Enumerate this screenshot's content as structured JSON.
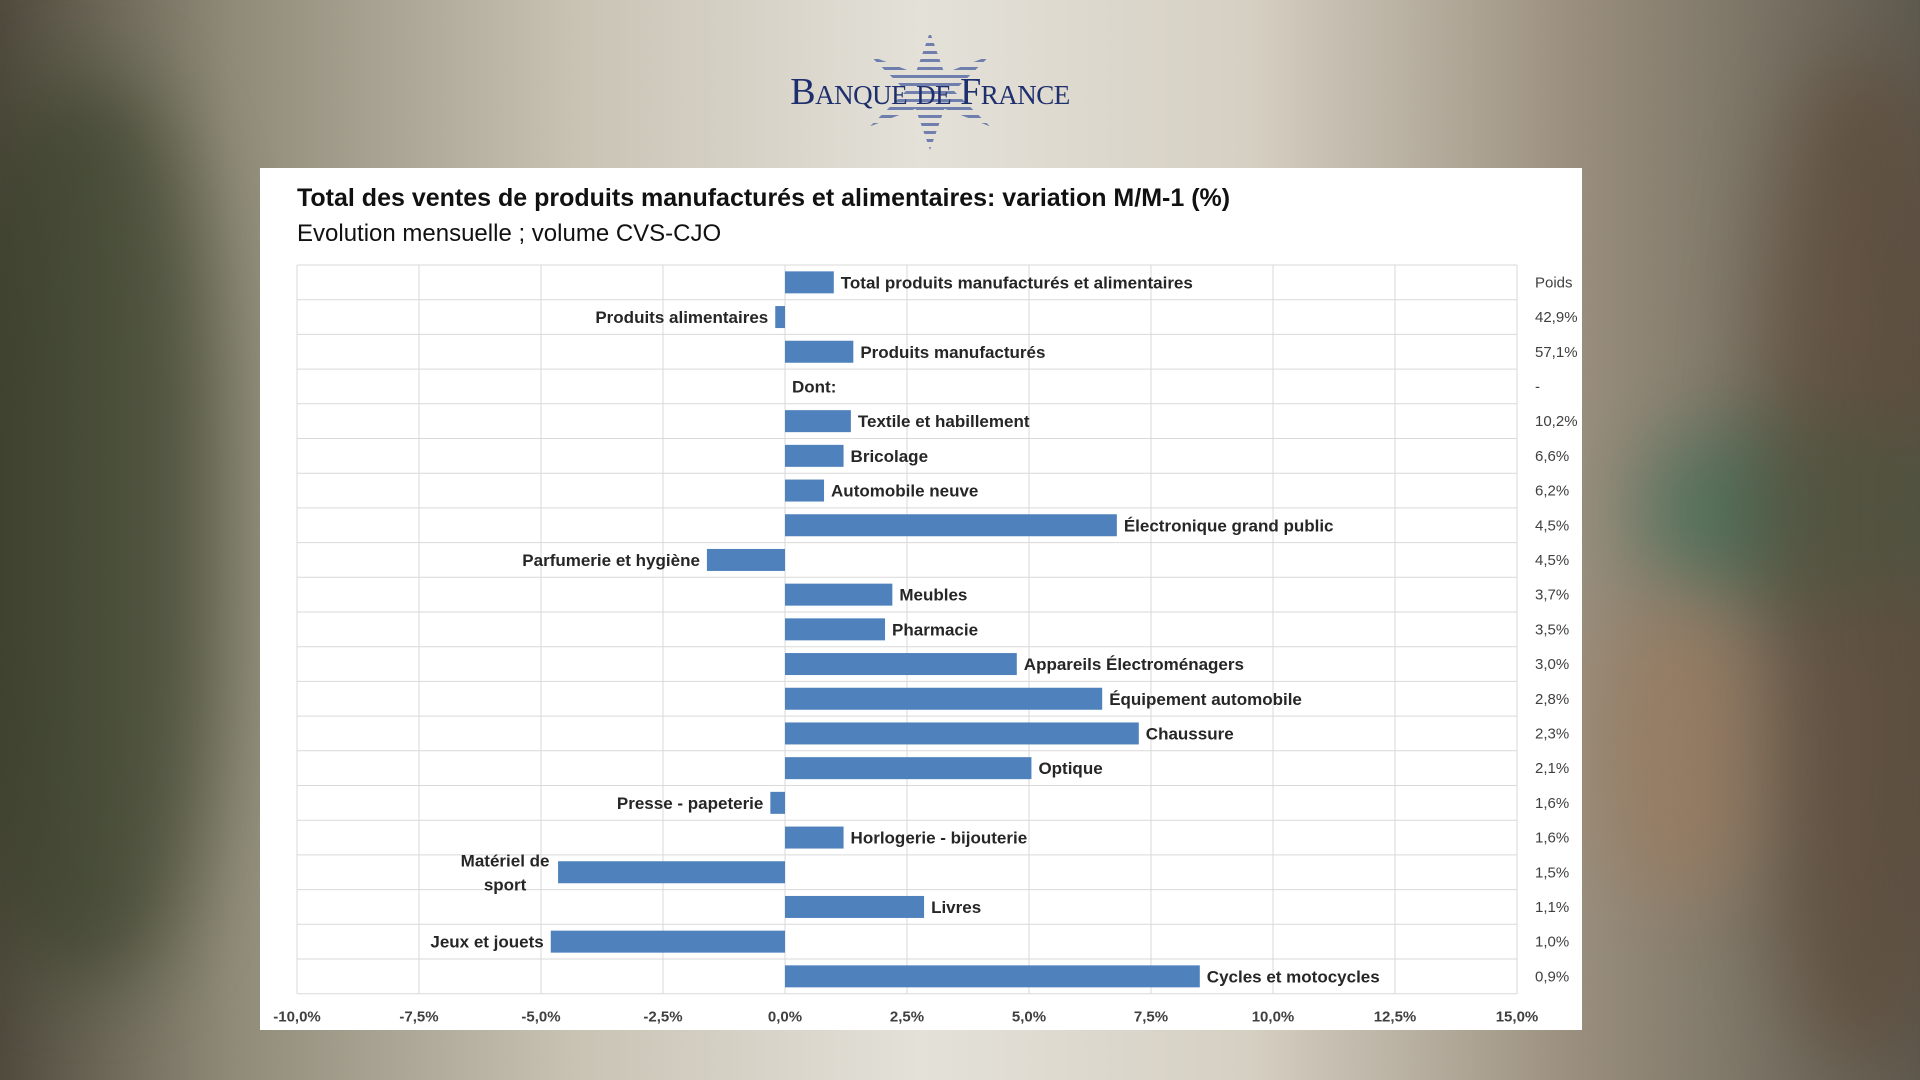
{
  "logo": {
    "text": "Banque de France"
  },
  "chart_data": {
    "type": "bar",
    "orientation": "horizontal",
    "title": "Total des ventes de produits manufacturés et alimentaires: variation M/M-1 (%)",
    "subtitle": "Evolution mensuelle ; volume CVS-CJO",
    "weight_header": "Poids",
    "xlim": [
      -10,
      15
    ],
    "x_ticks": [
      "-10,0%",
      "-7,5%",
      "-5,0%",
      "-2,5%",
      "0,0%",
      "2,5%",
      "5,0%",
      "7,5%",
      "10,0%",
      "12,5%",
      "15,0%"
    ],
    "bar_color": "#4f81bd",
    "grid": true,
    "categories": [
      {
        "label": "Total produits manufacturés et alimentaires",
        "value": 1.0,
        "weight": ""
      },
      {
        "label": "Produits alimentaires",
        "value": -0.2,
        "weight": "42,9%"
      },
      {
        "label": "Produits manufacturés",
        "value": 1.4,
        "weight": "57,1%"
      },
      {
        "label": "Dont:",
        "value": null,
        "weight": "-"
      },
      {
        "label": "Textile et habillement",
        "value": 1.35,
        "weight": "10,2%"
      },
      {
        "label": "Bricolage",
        "value": 1.2,
        "weight": "6,6%"
      },
      {
        "label": "Automobile neuve",
        "value": 0.8,
        "weight": "6,2%"
      },
      {
        "label": "Électronique grand public",
        "value": 6.8,
        "weight": "4,5%"
      },
      {
        "label": "Parfumerie et hygiène",
        "value": -1.6,
        "weight": "4,5%"
      },
      {
        "label": "Meubles",
        "value": 2.2,
        "weight": "3,7%"
      },
      {
        "label": "Pharmacie",
        "value": 2.05,
        "weight": "3,5%"
      },
      {
        "label": "Appareils Électroménagers",
        "value": 4.75,
        "weight": "3,0%"
      },
      {
        "label": "Équipement automobile",
        "value": 6.5,
        "weight": "2,8%"
      },
      {
        "label": "Chaussure",
        "value": 7.25,
        "weight": "2,3%"
      },
      {
        "label": "Optique",
        "value": 5.05,
        "weight": "2,1%"
      },
      {
        "label": "Presse - papeterie",
        "value": -0.3,
        "weight": "1,6%"
      },
      {
        "label": "Horlogerie - bijouterie",
        "value": 1.2,
        "weight": "1,6%"
      },
      {
        "label": "Matériel de sport",
        "value": -4.65,
        "weight": "1,5%"
      },
      {
        "label": "Livres",
        "value": 2.85,
        "weight": "1,1%"
      },
      {
        "label": "Jeux et jouets",
        "value": -4.8,
        "weight": "1,0%"
      },
      {
        "label": "Cycles et motocycles",
        "value": 8.5,
        "weight": "0,9%"
      }
    ]
  }
}
